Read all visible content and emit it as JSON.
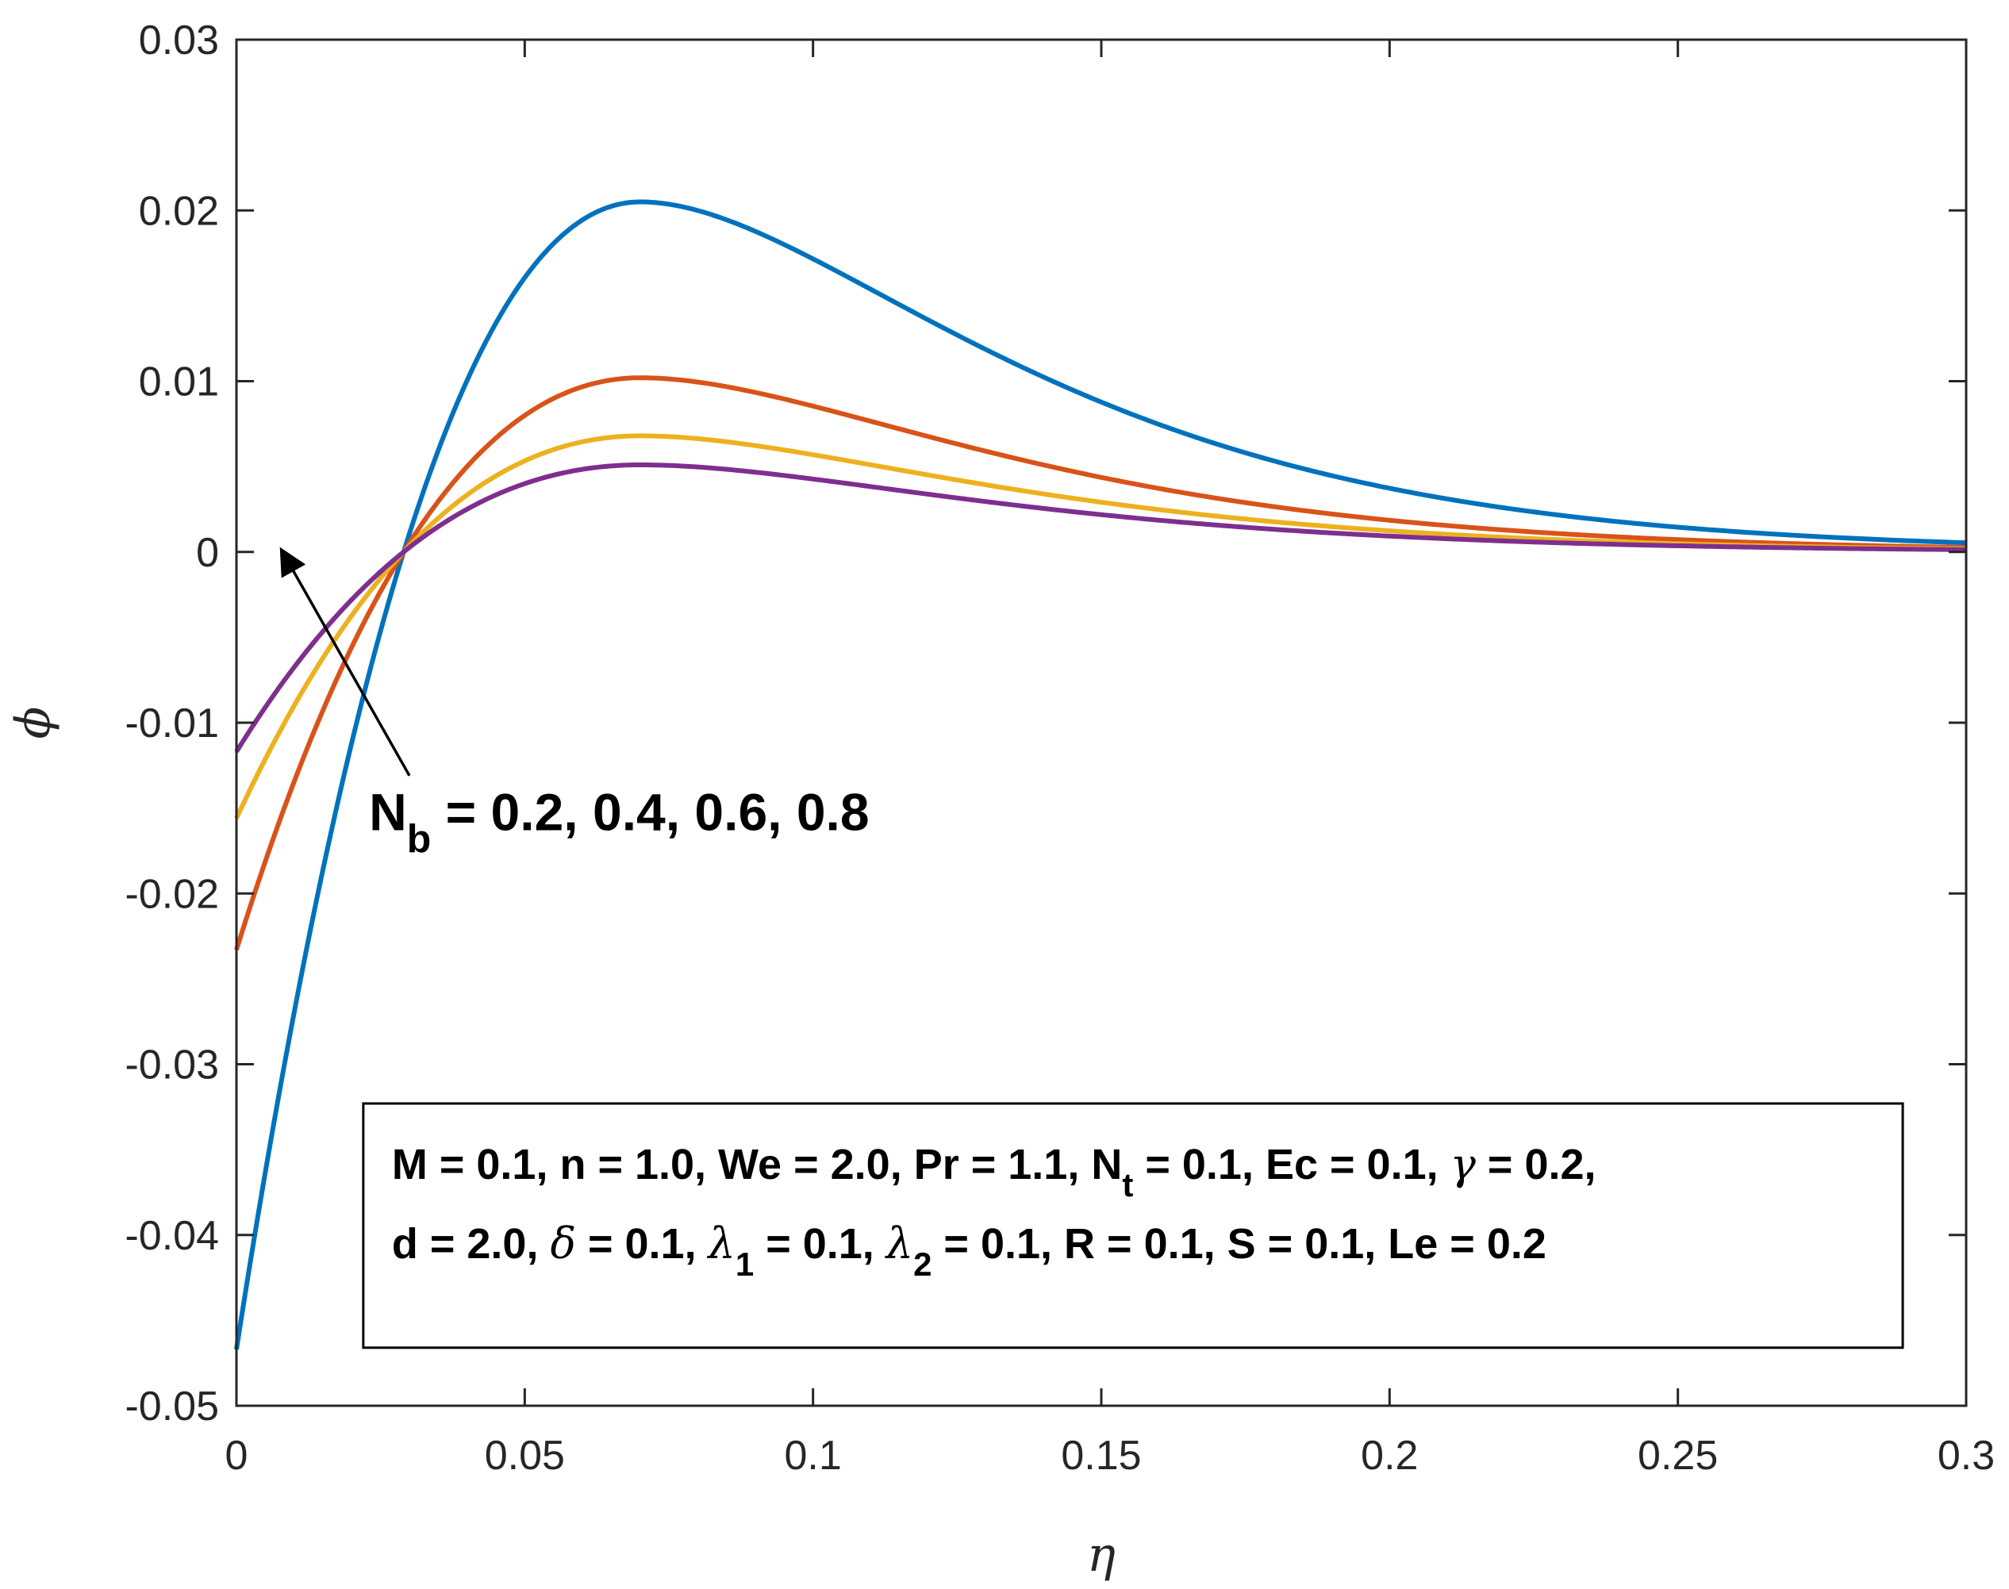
{
  "chart_data": {
    "type": "line",
    "xlabel": "η",
    "ylabel": "ϕ",
    "xlim": [
      0,
      0.3
    ],
    "ylim": [
      -0.05,
      0.03
    ],
    "xticks": [
      0,
      0.05,
      0.1,
      0.15,
      0.2,
      0.25,
      0.3
    ],
    "xtick_labels": [
      "0",
      "0.05",
      "0.1",
      "0.15",
      "0.2",
      "0.25",
      "0.3"
    ],
    "yticks": [
      -0.05,
      -0.04,
      -0.03,
      -0.02,
      -0.01,
      0,
      0.01,
      0.02,
      0.03
    ],
    "ytick_labels": [
      "-0.05",
      "-0.04",
      "-0.03",
      "-0.02",
      "-0.01",
      "0",
      "0.01",
      "0.02",
      "0.03"
    ],
    "grid": false,
    "series": [
      {
        "name": "Nb = 0.2",
        "color": "#0072BD",
        "start": -0.0467,
        "peak_x": 0.07,
        "peak": 0.0205,
        "zero_x": 0.029,
        "decay_rate": 24
      },
      {
        "name": "Nb = 0.4",
        "color": "#D95319",
        "start": -0.0233,
        "peak_x": 0.07,
        "peak": 0.0102,
        "zero_x": 0.029,
        "decay_rate": 24
      },
      {
        "name": "Nb = 0.6",
        "color": "#EDB120",
        "start": -0.0156,
        "peak_x": 0.07,
        "peak": 0.0068,
        "zero_x": 0.029,
        "decay_rate": 24
      },
      {
        "name": "Nb = 0.8",
        "color": "#7E2F8E",
        "start": -0.0117,
        "peak_x": 0.07,
        "peak": 0.0051,
        "zero_x": 0.029,
        "decay_rate": 24
      }
    ],
    "arrow": {
      "from": [
        0.03,
        -0.0131
      ],
      "to": [
        0.008,
        0.0
      ]
    },
    "annotation": {
      "nb_prefix": "N",
      "nb_sub": "b",
      "nb_values": " = 0.2, 0.4, 0.6, 0.8",
      "anchor": [
        0.023,
        -0.0163
      ]
    },
    "params_box": {
      "x_range": [
        0.022,
        0.289
      ],
      "y_range": [
        -0.0466,
        -0.0323
      ],
      "line1": {
        "a": "M = 0.1, n = 1.0, We = 2.0, Pr = 1.1, N",
        "a_sub": "t",
        "b": " = 0.1, Ec = 0.1, ",
        "gamma": "γ",
        "c": " = 0.2,"
      },
      "line2": {
        "a": "d = 2.0, ",
        "delta": "δ",
        "b": " = 0.1, ",
        "lambda1": "λ",
        "lambda1_sub": "1",
        "c": " = 0.1, ",
        "lambda2": "λ",
        "lambda2_sub": "2",
        "d": " = 0.1, R = 0.1, S = 0.1, Le = 0.2"
      }
    }
  }
}
